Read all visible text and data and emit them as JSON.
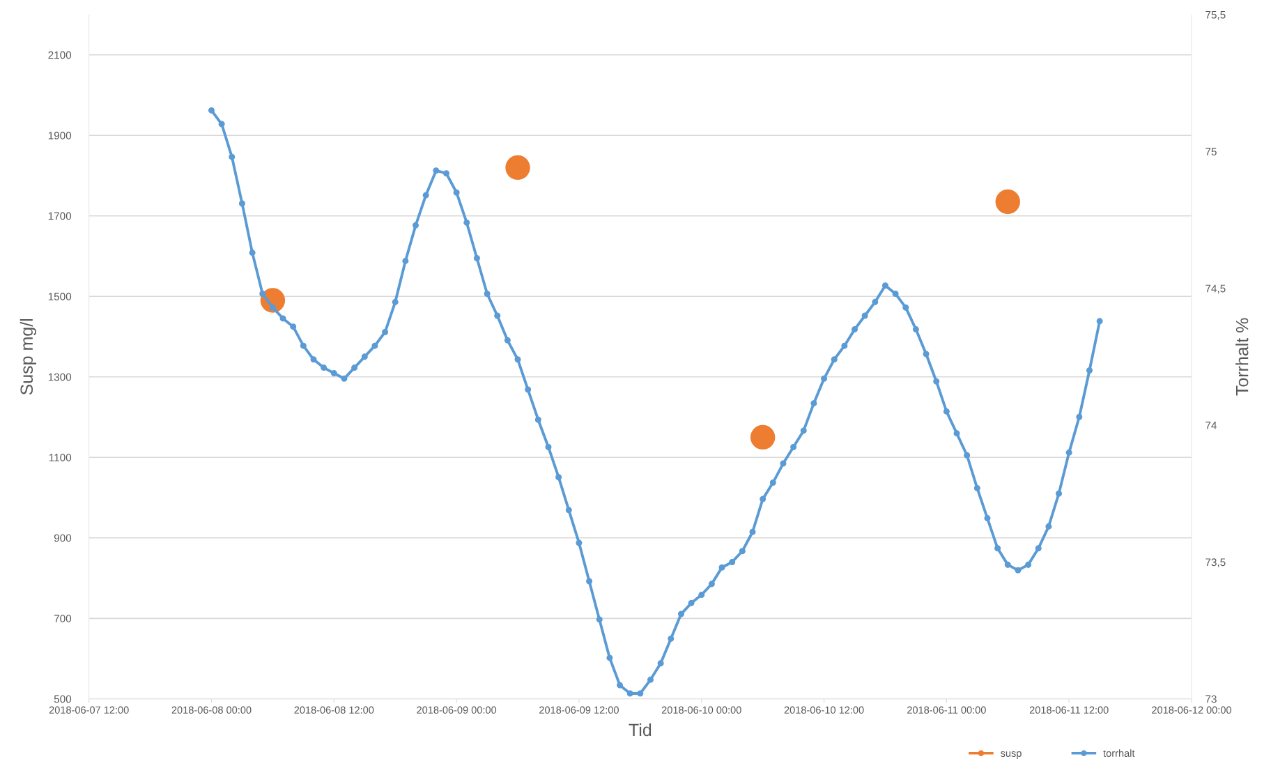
{
  "chart_data": {
    "type": "line",
    "xlabel": "Tid",
    "ylabel": "Susp mg/l",
    "y2label": "Torrhalt %",
    "xlim": [
      "2018-06-07T12:00",
      "2018-06-12T00:00"
    ],
    "xticks": [
      {
        "value": "2018-06-07T12:00",
        "label": "2018-06-07 12:00"
      },
      {
        "value": "2018-06-08T00:00",
        "label": "2018-06-08 00:00"
      },
      {
        "value": "2018-06-08T12:00",
        "label": "2018-06-08 12:00"
      },
      {
        "value": "2018-06-09T00:00",
        "label": "2018-06-09 00:00"
      },
      {
        "value": "2018-06-09T12:00",
        "label": "2018-06-09 12:00"
      },
      {
        "value": "2018-06-10T00:00",
        "label": "2018-06-10 00:00"
      },
      {
        "value": "2018-06-10T12:00",
        "label": "2018-06-10 12:00"
      },
      {
        "value": "2018-06-11T00:00",
        "label": "2018-06-11 00:00"
      },
      {
        "value": "2018-06-11T12:00",
        "label": "2018-06-11 12:00"
      },
      {
        "value": "2018-06-12T00:00",
        "label": "2018-06-12 00:00"
      }
    ],
    "ylim": [
      500,
      2200
    ],
    "yticks": [
      500,
      700,
      900,
      1100,
      1300,
      1500,
      1700,
      1900,
      2100
    ],
    "y2lim": [
      73,
      75.5
    ],
    "y2ticks": [
      {
        "value": 73,
        "label": "73"
      },
      {
        "value": 73.5,
        "label": "73,5"
      },
      {
        "value": 74,
        "label": "74"
      },
      {
        "value": 74.5,
        "label": "74,5"
      },
      {
        "value": 75,
        "label": "75"
      },
      {
        "value": 75.5,
        "label": "75,5"
      }
    ],
    "grid": "y",
    "legend": "bottom",
    "marker": "circle",
    "series": [
      {
        "name": "susp",
        "type": "scatter",
        "color": "#ed7d31",
        "x": [
          "2018-06-08T06:00",
          "2018-06-09T06:00",
          "2018-06-10T06:00",
          "2018-06-11T06:00"
        ],
        "values": [
          1490,
          1820,
          1150,
          1735
        ]
      },
      {
        "name": "torrhalt",
        "axis": "y2",
        "color": "#5b9bd5",
        "x": [
          "2018-06-08T00:00",
          "2018-06-08T01:00",
          "2018-06-08T02:00",
          "2018-06-08T03:00",
          "2018-06-08T04:00",
          "2018-06-08T05:00",
          "2018-06-08T06:00",
          "2018-06-08T07:00",
          "2018-06-08T08:00",
          "2018-06-08T09:00",
          "2018-06-08T10:00",
          "2018-06-08T11:00",
          "2018-06-08T12:00",
          "2018-06-08T13:00",
          "2018-06-08T14:00",
          "2018-06-08T15:00",
          "2018-06-08T16:00",
          "2018-06-08T17:00",
          "2018-06-08T18:00",
          "2018-06-08T19:00",
          "2018-06-08T20:00",
          "2018-06-08T21:00",
          "2018-06-08T22:00",
          "2018-06-08T23:00",
          "2018-06-09T00:00",
          "2018-06-09T01:00",
          "2018-06-09T02:00",
          "2018-06-09T03:00",
          "2018-06-09T04:00",
          "2018-06-09T05:00",
          "2018-06-09T06:00",
          "2018-06-09T07:00",
          "2018-06-09T08:00",
          "2018-06-09T09:00",
          "2018-06-09T10:00",
          "2018-06-09T11:00",
          "2018-06-09T12:00",
          "2018-06-09T13:00",
          "2018-06-09T14:00",
          "2018-06-09T15:00",
          "2018-06-09T16:00",
          "2018-06-09T17:00",
          "2018-06-09T18:00",
          "2018-06-09T19:00",
          "2018-06-09T20:00",
          "2018-06-09T21:00",
          "2018-06-09T22:00",
          "2018-06-09T23:00",
          "2018-06-10T00:00",
          "2018-06-10T01:00",
          "2018-06-10T02:00",
          "2018-06-10T03:00",
          "2018-06-10T04:00",
          "2018-06-10T05:00",
          "2018-06-10T06:00",
          "2018-06-10T07:00",
          "2018-06-10T08:00",
          "2018-06-10T09:00",
          "2018-06-10T10:00",
          "2018-06-10T11:00",
          "2018-06-10T12:00",
          "2018-06-10T13:00",
          "2018-06-10T14:00",
          "2018-06-10T15:00",
          "2018-06-10T16:00",
          "2018-06-10T17:00",
          "2018-06-10T18:00",
          "2018-06-10T19:00",
          "2018-06-10T20:00",
          "2018-06-10T21:00",
          "2018-06-10T22:00",
          "2018-06-10T23:00",
          "2018-06-11T00:00",
          "2018-06-11T01:00",
          "2018-06-11T02:00",
          "2018-06-11T03:00",
          "2018-06-11T04:00",
          "2018-06-11T05:00",
          "2018-06-11T06:00",
          "2018-06-11T07:00",
          "2018-06-11T08:00",
          "2018-06-11T09:00",
          "2018-06-11T10:00",
          "2018-06-11T11:00",
          "2018-06-11T12:00",
          "2018-06-11T13:00",
          "2018-06-11T14:00",
          "2018-06-11T15:00"
        ],
        "values": [
          75.15,
          75.1,
          74.98,
          74.81,
          74.63,
          74.48,
          74.43,
          74.39,
          74.36,
          74.29,
          74.24,
          74.21,
          74.19,
          74.17,
          74.21,
          74.25,
          74.29,
          74.34,
          74.45,
          74.6,
          74.73,
          74.84,
          74.93,
          74.92,
          74.85,
          74.74,
          74.61,
          74.48,
          74.4,
          74.31,
          74.24,
          74.13,
          74.02,
          73.92,
          73.81,
          73.69,
          73.57,
          73.43,
          73.29,
          73.15,
          73.05,
          73.02,
          73.02,
          73.07,
          73.13,
          73.22,
          73.31,
          73.35,
          73.38,
          73.42,
          73.48,
          73.5,
          73.54,
          73.61,
          73.73,
          73.79,
          73.86,
          73.92,
          73.98,
          74.08,
          74.17,
          74.24,
          74.29,
          74.35,
          74.4,
          74.45,
          74.51,
          74.48,
          74.43,
          74.35,
          74.26,
          74.16,
          74.05,
          73.97,
          73.89,
          73.77,
          73.66,
          73.55,
          73.49,
          73.47,
          73.49,
          73.55,
          73.63,
          73.75,
          73.9,
          74.03,
          74.2,
          74.38
        ]
      }
    ]
  }
}
